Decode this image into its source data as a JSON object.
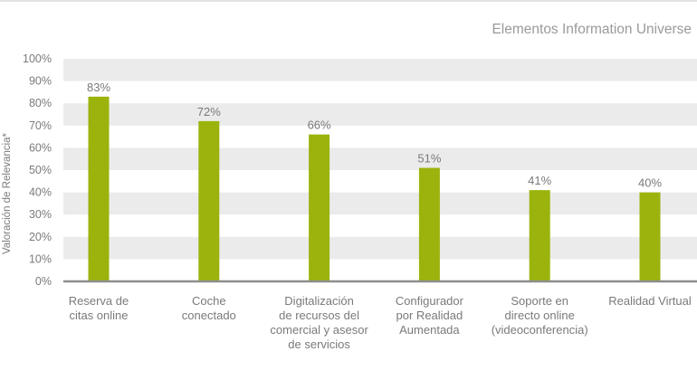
{
  "chart_data": {
    "type": "bar",
    "title": "Elementos Information Universe",
    "ylabel": "Valoración de Relevancia*",
    "xlabel": "",
    "ylim": [
      0,
      100
    ],
    "yticks": [
      "0%",
      "10%",
      "20%",
      "30%",
      "40%",
      "50%",
      "60%",
      "70%",
      "80%",
      "90%",
      "100%"
    ],
    "categories": [
      [
        "Reserva de",
        "citas online"
      ],
      [
        "Coche",
        "conectado"
      ],
      [
        "Digitalización",
        "de recursos del",
        "comercial y asesor",
        "de servicios"
      ],
      [
        "Configurador",
        "por Realidad",
        "Aumentada"
      ],
      [
        "Soporte en",
        "directo online",
        "(videoconferencia)"
      ],
      [
        "Realidad Virtual"
      ]
    ],
    "values": [
      83,
      72,
      66,
      51,
      41,
      40
    ],
    "value_labels": [
      "83%",
      "72%",
      "66%",
      "51%",
      "41%",
      "40%"
    ],
    "grid": "alternating horizontal bands",
    "legend": "none",
    "colors": {
      "bar": "#9bb30c",
      "band": "#ebebeb",
      "axis": "#8d8d8d",
      "text": "#7a7a7a",
      "title": "#9a9a9a"
    }
  }
}
